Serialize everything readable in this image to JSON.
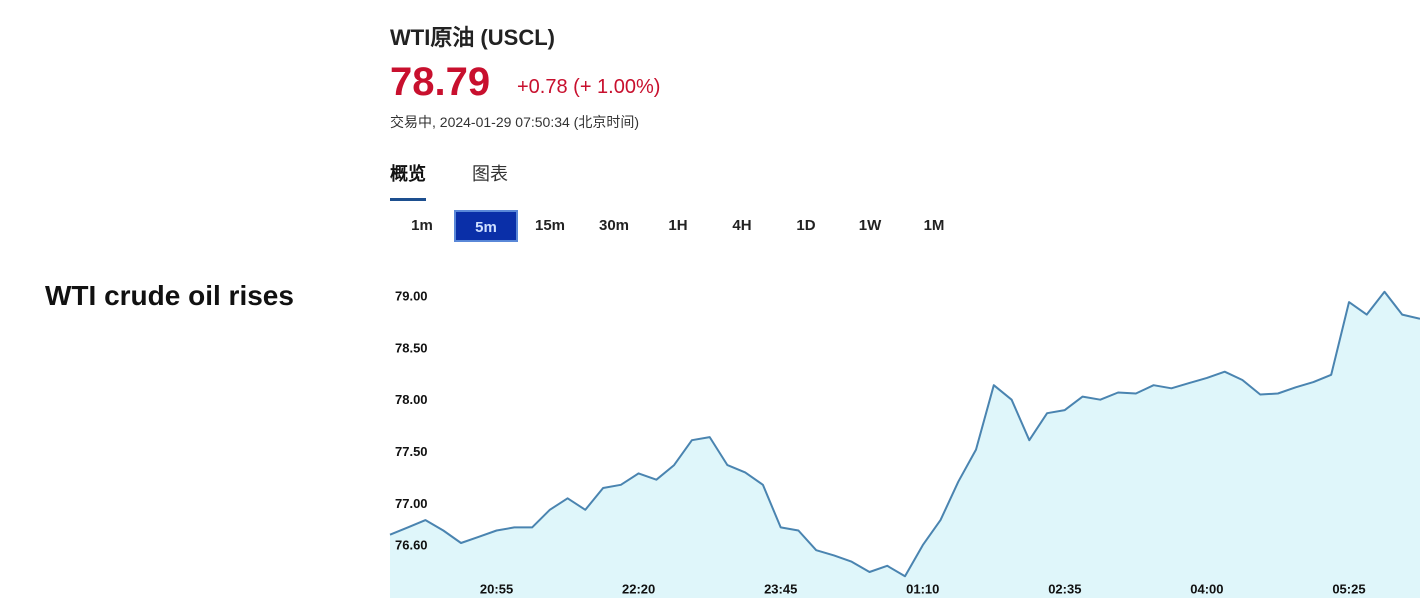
{
  "caption": "WTI crude oil rises",
  "header": {
    "title": "WTI原油 (USCL)",
    "price": "78.79",
    "change": "+0.78 (+ 1.00%)",
    "status": "交易中, 2024-01-29 07:50:34 (北京时间)"
  },
  "tabs": [
    {
      "label": "概览",
      "selected": true
    },
    {
      "label": "图表",
      "selected": false
    }
  ],
  "intervals": [
    "1m",
    "5m",
    "15m",
    "30m",
    "1H",
    "4H",
    "1D",
    "1W",
    "1M"
  ],
  "selected_interval": 1,
  "chart_data": {
    "type": "line",
    "color": "#4a84b0",
    "fill_color": "#dff6fa",
    "categories": [
      null,
      null,
      null,
      null,
      null,
      null,
      "20:55",
      null,
      null,
      null,
      null,
      null,
      null,
      null,
      "22:20",
      null,
      null,
      null,
      null,
      null,
      null,
      null,
      "23:45",
      null,
      null,
      null,
      null,
      null,
      null,
      null,
      "01:10",
      null,
      null,
      null,
      null,
      null,
      null,
      null,
      "02:35",
      null,
      null,
      null,
      null,
      null,
      null,
      null,
      "04:00",
      null,
      null,
      null,
      null,
      null,
      null,
      null,
      "05:25",
      null,
      null,
      null,
      null
    ],
    "values": [
      76.71,
      76.78,
      76.85,
      76.75,
      76.63,
      76.69,
      76.75,
      76.78,
      76.78,
      76.95,
      77.06,
      76.95,
      77.16,
      77.19,
      77.3,
      77.24,
      77.38,
      77.62,
      77.65,
      77.38,
      77.31,
      77.19,
      76.78,
      76.75,
      76.56,
      76.51,
      76.45,
      76.35,
      76.41,
      76.31,
      76.61,
      76.85,
      77.22,
      77.53,
      78.15,
      78.01,
      77.62,
      77.88,
      77.91,
      78.04,
      78.01,
      78.08,
      78.07,
      78.15,
      78.12,
      78.17,
      78.22,
      78.28,
      78.2,
      78.06,
      78.07,
      78.13,
      78.18,
      78.25,
      78.95,
      78.83,
      79.05,
      78.83,
      78.79
    ],
    "ylim": [
      76.1,
      79.25
    ],
    "yticks": [
      {
        "value": 79,
        "label": "79.00"
      },
      {
        "value": 78.5,
        "label": "78.50"
      },
      {
        "value": 78,
        "label": "78.00"
      },
      {
        "value": 77.5,
        "label": "77.50"
      },
      {
        "value": 77,
        "label": "77.00"
      },
      {
        "value": 76.6,
        "label": "76.60"
      }
    ]
  }
}
